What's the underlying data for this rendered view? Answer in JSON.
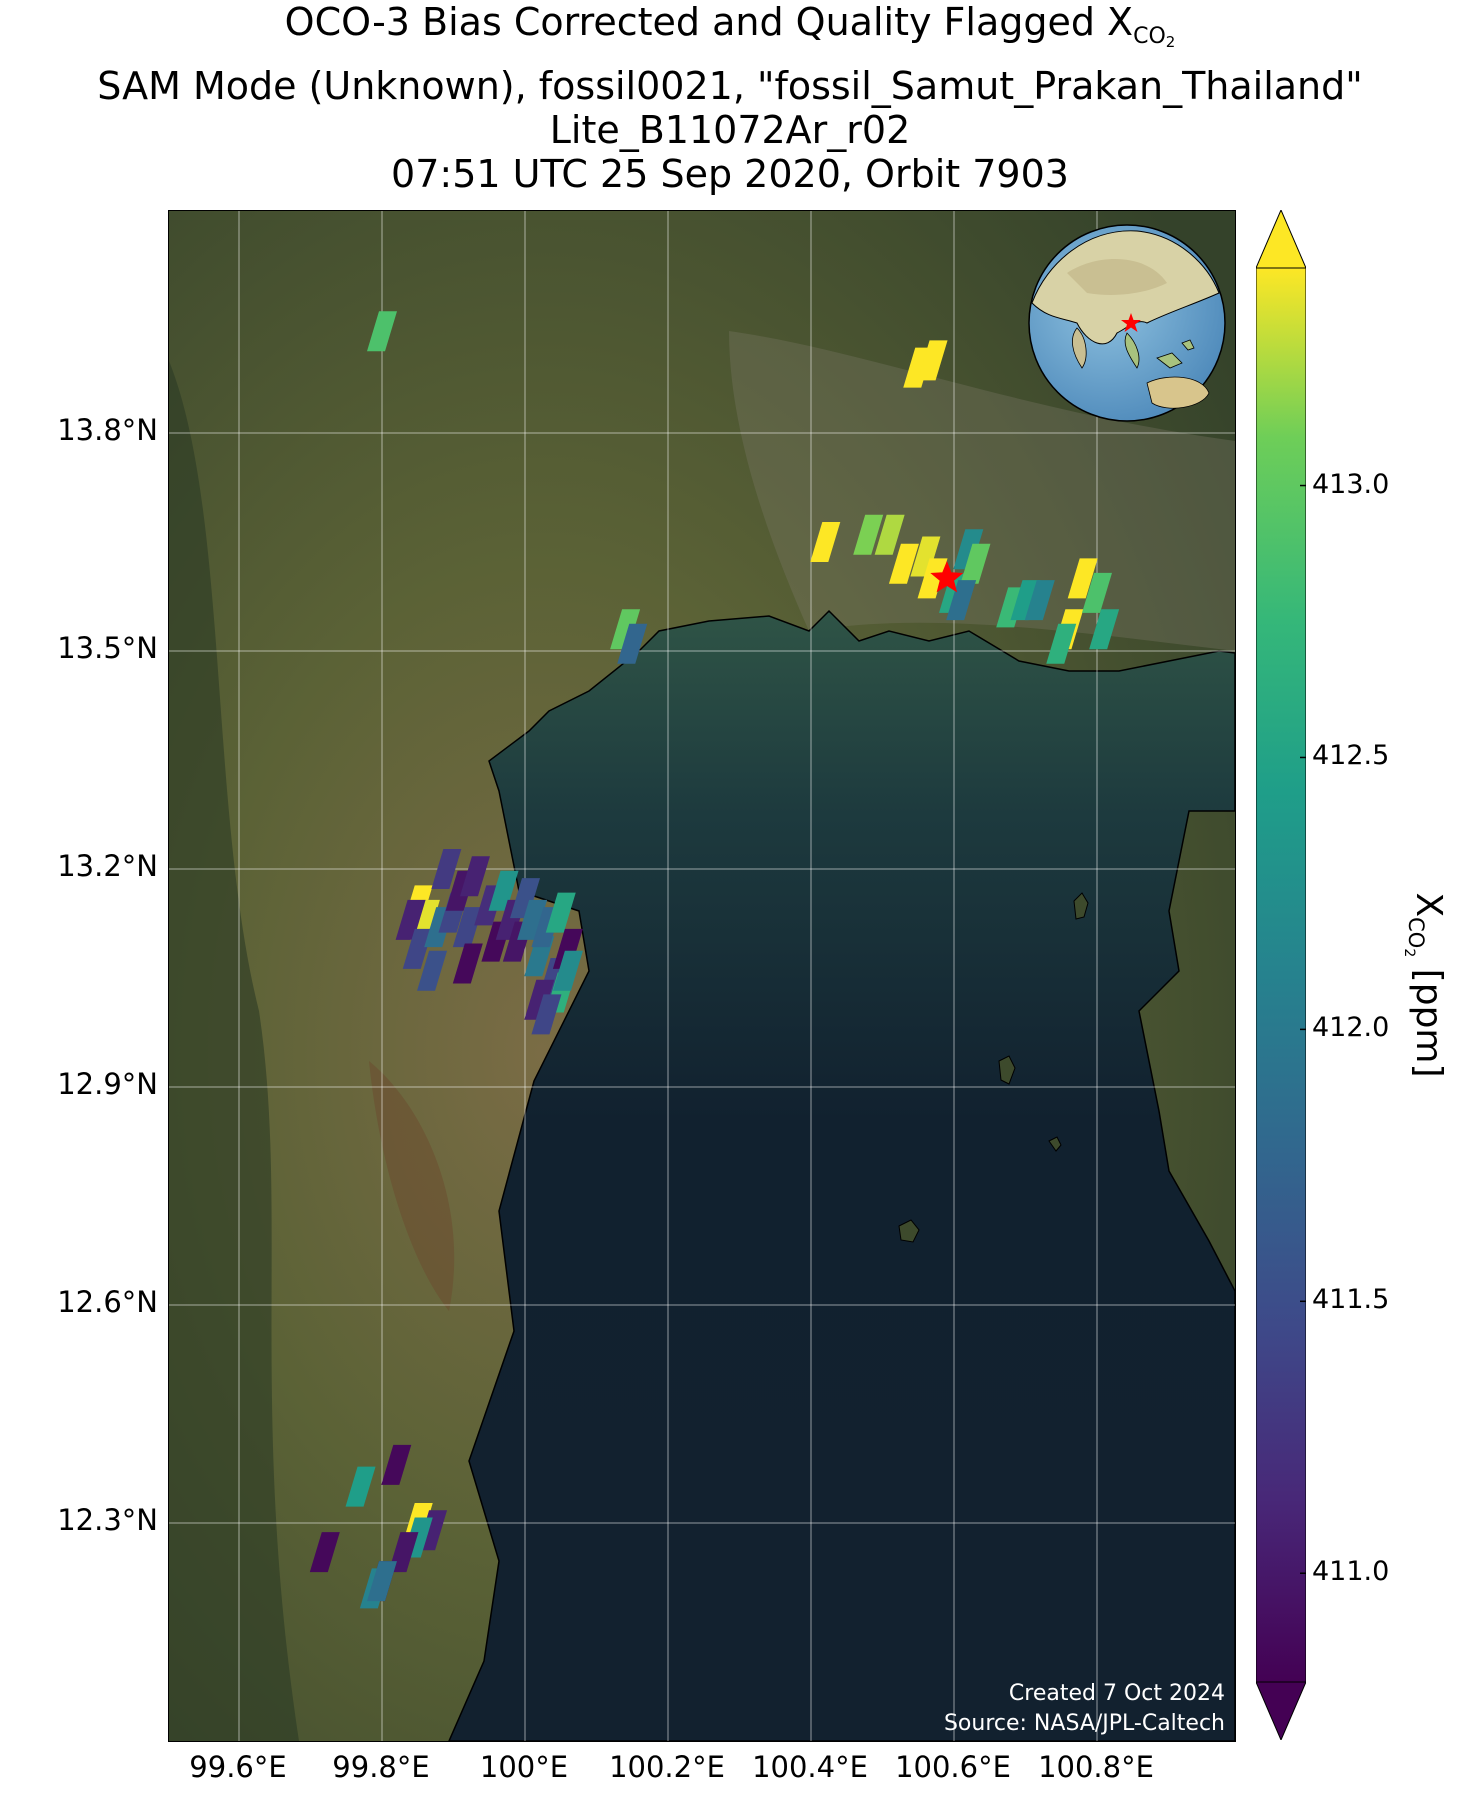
{
  "title": {
    "line1_prefix": "OCO-3 Bias Corrected and Quality Flagged X",
    "line1_sub": "CO",
    "line1_subsub": "2",
    "line2": "SAM Mode (Unknown), fossil0021, \"fossil_Samut_Prakan_Thailand\"",
    "line3": "Lite_B11072Ar_r02",
    "line4": "07:51 UTC 25 Sep 2020, Orbit 7903"
  },
  "map": {
    "lon_ticks": [
      "99.6°E",
      "99.8°E",
      "100°E",
      "100.2°E",
      "100.4°E",
      "100.6°E",
      "100.8°E"
    ],
    "lat_ticks": [
      "13.8°N",
      "13.5°N",
      "13.2°N",
      "12.9°N",
      "12.6°N",
      "12.3°N"
    ],
    "lon_tick_values": [
      99.6,
      99.8,
      100.0,
      100.2,
      100.4,
      100.6,
      100.8
    ],
    "lat_tick_values": [
      13.8,
      13.5,
      13.2,
      12.9,
      12.6,
      12.3
    ],
    "target": {
      "lon": 100.59,
      "lat": 13.6,
      "marker": "red-star"
    },
    "credit_line1": "Created 7 Oct 2024",
    "credit_line2": "Source: NASA/JPL-Caltech",
    "inset": "globe-locator"
  },
  "colorbar": {
    "title_prefix": "X",
    "title_sub": "CO",
    "title_subsub": "2",
    "title_suffix": " [ppm]",
    "colormap": "viridis",
    "tick_labels": [
      "413.0",
      "412.5",
      "412.0",
      "411.5",
      "411.0"
    ],
    "tick_values": [
      413.0,
      412.5,
      412.0,
      411.5,
      411.0
    ],
    "range": [
      410.8,
      413.4
    ],
    "extend": "both"
  },
  "soundings": [
    {
      "lon": 100.55,
      "lat": 13.89,
      "xco2": 413.4
    },
    {
      "lon": 100.57,
      "lat": 13.9,
      "xco2": 413.3
    },
    {
      "lon": 100.42,
      "lat": 13.65,
      "xco2": 413.4
    },
    {
      "lon": 100.48,
      "lat": 13.66,
      "xco2": 413.0
    },
    {
      "lon": 100.51,
      "lat": 13.66,
      "xco2": 413.1
    },
    {
      "lon": 100.53,
      "lat": 13.62,
      "xco2": 413.4
    },
    {
      "lon": 100.56,
      "lat": 13.63,
      "xco2": 413.2
    },
    {
      "lon": 100.57,
      "lat": 13.6,
      "xco2": 413.4
    },
    {
      "lon": 100.6,
      "lat": 13.58,
      "xco2": 412.5
    },
    {
      "lon": 100.62,
      "lat": 13.64,
      "xco2": 412.2
    },
    {
      "lon": 100.63,
      "lat": 13.62,
      "xco2": 412.9
    },
    {
      "lon": 100.61,
      "lat": 13.57,
      "xco2": 411.9
    },
    {
      "lon": 100.68,
      "lat": 13.56,
      "xco2": 412.7
    },
    {
      "lon": 100.7,
      "lat": 13.57,
      "xco2": 412.4
    },
    {
      "lon": 100.72,
      "lat": 13.57,
      "xco2": 412.1
    },
    {
      "lon": 100.76,
      "lat": 13.53,
      "xco2": 413.4
    },
    {
      "lon": 100.78,
      "lat": 13.6,
      "xco2": 413.4
    },
    {
      "lon": 100.8,
      "lat": 13.58,
      "xco2": 412.8
    },
    {
      "lon": 100.81,
      "lat": 13.53,
      "xco2": 412.5
    },
    {
      "lon": 100.75,
      "lat": 13.51,
      "xco2": 412.6
    },
    {
      "lon": 100.14,
      "lat": 13.53,
      "xco2": 412.9
    },
    {
      "lon": 100.15,
      "lat": 13.51,
      "xco2": 411.8
    },
    {
      "lon": 99.8,
      "lat": 13.94,
      "xco2": 412.8
    },
    {
      "lon": 99.85,
      "lat": 13.15,
      "xco2": 413.4
    },
    {
      "lon": 99.86,
      "lat": 13.13,
      "xco2": 413.2
    },
    {
      "lon": 99.84,
      "lat": 13.13,
      "xco2": 411.2
    },
    {
      "lon": 99.85,
      "lat": 13.09,
      "xco2": 411.5
    },
    {
      "lon": 99.87,
      "lat": 13.06,
      "xco2": 411.6
    },
    {
      "lon": 99.88,
      "lat": 13.12,
      "xco2": 411.9
    },
    {
      "lon": 99.89,
      "lat": 13.2,
      "xco2": 411.4
    },
    {
      "lon": 99.9,
      "lat": 13.14,
      "xco2": 411.5
    },
    {
      "lon": 99.91,
      "lat": 13.17,
      "xco2": 411.1
    },
    {
      "lon": 99.92,
      "lat": 13.12,
      "xco2": 411.5
    },
    {
      "lon": 99.92,
      "lat": 13.07,
      "xco2": 411.0
    },
    {
      "lon": 99.93,
      "lat": 13.19,
      "xco2": 411.2
    },
    {
      "lon": 99.95,
      "lat": 13.15,
      "xco2": 411.3
    },
    {
      "lon": 99.96,
      "lat": 13.1,
      "xco2": 411.0
    },
    {
      "lon": 99.97,
      "lat": 13.17,
      "xco2": 412.3
    },
    {
      "lon": 99.98,
      "lat": 13.13,
      "xco2": 411.2
    },
    {
      "lon": 99.99,
      "lat": 13.1,
      "xco2": 411.1
    },
    {
      "lon": 100.0,
      "lat": 13.16,
      "xco2": 411.6
    },
    {
      "lon": 100.01,
      "lat": 13.13,
      "xco2": 411.9
    },
    {
      "lon": 100.02,
      "lat": 13.08,
      "xco2": 412.0
    },
    {
      "lon": 100.03,
      "lat": 13.12,
      "xco2": 411.8
    },
    {
      "lon": 100.04,
      "lat": 13.05,
      "xco2": 411.5
    },
    {
      "lon": 100.05,
      "lat": 13.14,
      "xco2": 412.5
    },
    {
      "lon": 100.06,
      "lat": 13.09,
      "xco2": 411.0
    },
    {
      "lon": 100.05,
      "lat": 13.03,
      "xco2": 412.6
    },
    {
      "lon": 100.02,
      "lat": 13.02,
      "xco2": 411.2
    },
    {
      "lon": 100.03,
      "lat": 13.0,
      "xco2": 411.5
    },
    {
      "lon": 100.06,
      "lat": 13.06,
      "xco2": 412.2
    },
    {
      "lon": 99.82,
      "lat": 12.38,
      "xco2": 411.0
    },
    {
      "lon": 99.77,
      "lat": 12.35,
      "xco2": 412.4
    },
    {
      "lon": 99.85,
      "lat": 12.3,
      "xco2": 413.4
    },
    {
      "lon": 99.87,
      "lat": 12.29,
      "xco2": 411.2
    },
    {
      "lon": 99.85,
      "lat": 12.28,
      "xco2": 412.3
    },
    {
      "lon": 99.83,
      "lat": 12.26,
      "xco2": 411.1
    },
    {
      "lon": 99.72,
      "lat": 12.26,
      "xco2": 411.0
    },
    {
      "lon": 99.8,
      "lat": 12.22,
      "xco2": 411.0
    },
    {
      "lon": 99.79,
      "lat": 12.21,
      "xco2": 412.1
    },
    {
      "lon": 99.8,
      "lat": 12.22,
      "xco2": 411.9
    }
  ]
}
